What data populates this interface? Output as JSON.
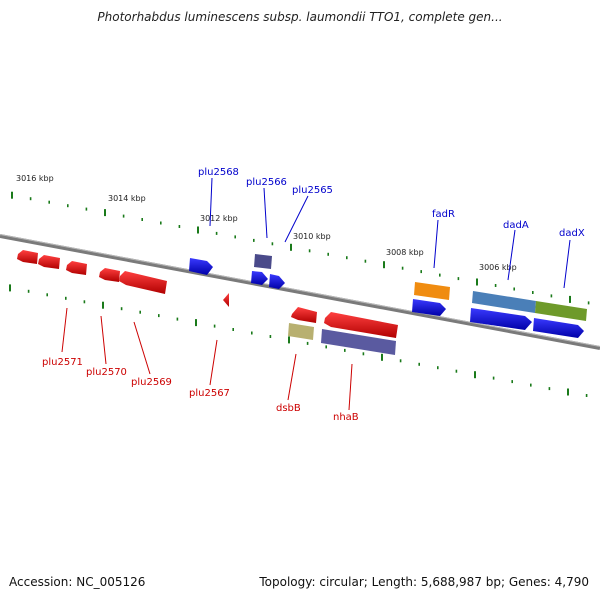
{
  "title": "Photorhabdus luminescens subsp. laumondii TTO1, complete gen...",
  "footer": {
    "accession": "Accession: NC_005126",
    "summary": "Topology: circular; Length: 5,688,987 bp; Genes: 4,790"
  },
  "ruler_labels": [
    "3016 kbp",
    "3014 kbp",
    "3012 kbp",
    "3010 kbp",
    "3008 kbp",
    "3006 kbp"
  ],
  "forward_genes": [
    {
      "name": "plu2568",
      "color": "#0000cc"
    },
    {
      "name": "plu2566",
      "color": "#0000cc"
    },
    {
      "name": "plu2565",
      "color": "#0000cc"
    },
    {
      "name": "fadR",
      "color": "#0000cc"
    },
    {
      "name": "dadA",
      "color": "#0000cc"
    },
    {
      "name": "dadX",
      "color": "#0000cc"
    }
  ],
  "reverse_genes": [
    {
      "name": "plu2571",
      "color": "#cc0000"
    },
    {
      "name": "plu2570",
      "color": "#cc0000"
    },
    {
      "name": "plu2569",
      "color": "#cc0000"
    },
    {
      "name": "plu2567",
      "color": "#cc0000"
    },
    {
      "name": "dsbB",
      "color": "#cc0000"
    },
    {
      "name": "nhaB",
      "color": "#cc0000"
    }
  ],
  "colors": {
    "tick": "#1a7a1a",
    "backbone": "#8a8a8a",
    "forward_gene": "#1010e6",
    "reverse_gene": "#ee1111",
    "fadR_bar": "#f08c10",
    "dadA_bar": "#4a7fb8",
    "dadX_bar": "#6e9a2a",
    "dsbB_bar": "#b8b070",
    "nhaB_bar": "#5a5aa0",
    "plu2566_bar": "#4a4a8a"
  }
}
